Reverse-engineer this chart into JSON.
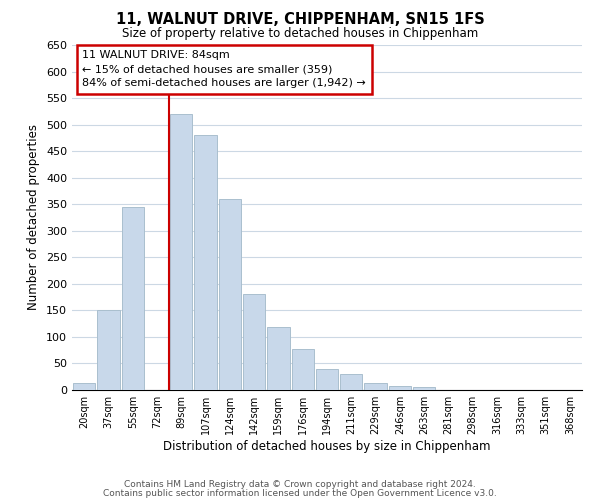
{
  "title": "11, WALNUT DRIVE, CHIPPENHAM, SN15 1FS",
  "subtitle": "Size of property relative to detached houses in Chippenham",
  "xlabel": "Distribution of detached houses by size in Chippenham",
  "ylabel": "Number of detached properties",
  "bin_labels": [
    "20sqm",
    "37sqm",
    "55sqm",
    "72sqm",
    "89sqm",
    "107sqm",
    "124sqm",
    "142sqm",
    "159sqm",
    "176sqm",
    "194sqm",
    "211sqm",
    "229sqm",
    "246sqm",
    "263sqm",
    "281sqm",
    "298sqm",
    "316sqm",
    "333sqm",
    "351sqm",
    "368sqm"
  ],
  "bar_values": [
    14,
    150,
    345,
    0,
    520,
    480,
    360,
    180,
    118,
    78,
    40,
    30,
    14,
    8,
    5,
    0,
    0,
    0,
    0,
    0,
    0
  ],
  "bar_color": "#c8d8ea",
  "bar_edge_color": "#aabfce",
  "vline_x_index": 4,
  "vline_color": "#cc0000",
  "ylim": [
    0,
    650
  ],
  "yticks": [
    0,
    50,
    100,
    150,
    200,
    250,
    300,
    350,
    400,
    450,
    500,
    550,
    600,
    650
  ],
  "annotation_title": "11 WALNUT DRIVE: 84sqm",
  "annotation_line1": "← 15% of detached houses are smaller (359)",
  "annotation_line2": "84% of semi-detached houses are larger (1,942) →",
  "annotation_box_color": "#ffffff",
  "annotation_box_edge_color": "#cc0000",
  "footer_line1": "Contains HM Land Registry data © Crown copyright and database right 2024.",
  "footer_line2": "Contains public sector information licensed under the Open Government Licence v3.0.",
  "background_color": "#ffffff",
  "grid_color": "#ccd8e4"
}
